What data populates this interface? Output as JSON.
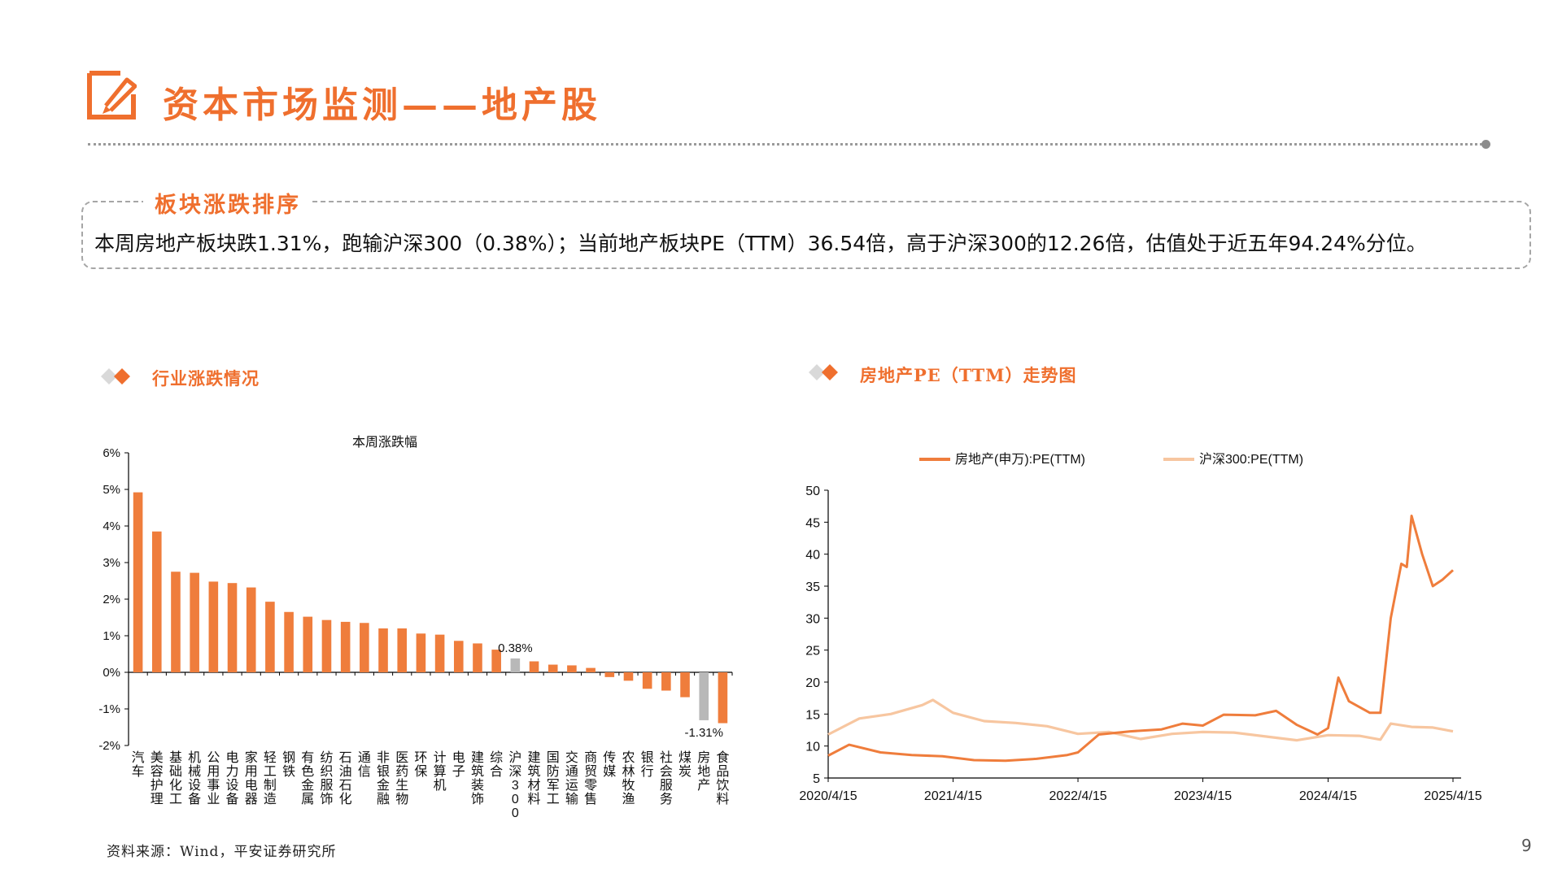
{
  "page": {
    "title": "资本市场监测——地产股",
    "summary_label": "板块涨跌排序",
    "summary_text": "本周房地产板块跌1.31%，跑输沪深300（0.38%）；当前地产板块PE（TTM）36.54倍，高于沪深300的12.26倍，估值处于近五年94.24%分位。",
    "section_left_title": "行业涨跌情况",
    "section_right_title": "房地产PE（TTM）走势图",
    "source_note": "资料来源：Wind，平安证券研究所",
    "page_number": "9"
  },
  "colors": {
    "accent": "#ef6f2e",
    "bar_default": "#ef7d3c",
    "bar_highlight": "#b8b8b8",
    "series_re": "#ef7d3c",
    "series_hs300": "#f7c6a0",
    "axis": "#000000"
  },
  "icons": {
    "title_icon": "pencil-square-icon",
    "section_icon": "double-diamond-icon"
  },
  "chart_data": [
    {
      "type": "bar",
      "title": "本周涨跌幅",
      "ylim": [
        -2,
        6
      ],
      "yticks": [
        6,
        5,
        4,
        3,
        2,
        1,
        0,
        -1,
        -2
      ],
      "ytick_labels": [
        "6%",
        "5%",
        "4%",
        "3%",
        "2%",
        "1%",
        "0%",
        "-1%",
        "-2%"
      ],
      "grid": false,
      "legend": "none",
      "categories": [
        "汽车",
        "美容护理",
        "基础化工",
        "机械设备",
        "公用事业",
        "电力设备",
        "家用电器",
        "轻工制造",
        "钢铁",
        "有色金属",
        "纺织服饰",
        "石油石化",
        "通信",
        "非银金融",
        "医药生物",
        "环保",
        "计算机",
        "电子",
        "建筑装饰",
        "综合",
        "沪深300",
        "建筑材料",
        "国防军工",
        "交通运输",
        "商贸零售",
        "传媒",
        "农林牧渔",
        "银行",
        "社会服务",
        "煤炭",
        "房地产",
        "食品饮料"
      ],
      "values": [
        4.92,
        3.85,
        2.75,
        2.72,
        2.48,
        2.44,
        2.32,
        1.93,
        1.65,
        1.52,
        1.43,
        1.38,
        1.35,
        1.2,
        1.2,
        1.06,
        1.03,
        0.86,
        0.79,
        0.62,
        0.38,
        0.3,
        0.21,
        0.19,
        0.12,
        -0.13,
        -0.23,
        -0.45,
        -0.5,
        -0.68,
        -1.31,
        -1.39
      ],
      "highlight": [
        20,
        30
      ],
      "data_labels": [
        {
          "index": 20,
          "text": "0.38%"
        },
        {
          "index": 30,
          "text": "-1.31%"
        }
      ]
    },
    {
      "type": "line",
      "title": "",
      "xlabel": "",
      "ylabel": "",
      "ylim": [
        5,
        50
      ],
      "yticks": [
        5,
        10,
        15,
        20,
        25,
        30,
        35,
        40,
        45,
        50
      ],
      "x_tick_labels": [
        "2020/4/15",
        "2021/4/15",
        "2022/4/15",
        "2023/4/15",
        "2024/4/15",
        "2025/4/15"
      ],
      "grid": false,
      "legend": "top",
      "series": [
        {
          "name": "房地产(申万):PE(TTM)",
          "x": [
            "2020/4/15",
            "2020/6/15",
            "2020/9/15",
            "2020/12/15",
            "2021/3/15",
            "2021/6/15",
            "2021/9/15",
            "2021/12/15",
            "2022/3/15",
            "2022/4/15",
            "2022/6/15",
            "2022/9/15",
            "2022/12/15",
            "2023/2/15",
            "2023/4/15",
            "2023/6/15",
            "2023/9/15",
            "2023/11/15",
            "2024/1/15",
            "2024/3/15",
            "2024/4/15",
            "2024/5/15",
            "2024/6/15",
            "2024/8/15",
            "2024/9/15",
            "2024/10/15",
            "2024/11/15",
            "2024/12/1",
            "2024/12/15",
            "2025/1/15",
            "2025/2/15",
            "2025/3/15",
            "2025/4/15"
          ],
          "values": [
            8.5,
            10.2,
            9.0,
            8.6,
            8.4,
            7.8,
            7.7,
            8.0,
            8.6,
            9.0,
            11.8,
            12.3,
            12.6,
            13.5,
            13.2,
            14.9,
            14.8,
            15.5,
            13.3,
            11.8,
            12.8,
            20.7,
            17.0,
            15.2,
            15.2,
            30.0,
            38.5,
            38.0,
            46.0,
            40.0,
            35.0,
            36.0,
            37.5
          ]
        },
        {
          "name": "沪深300:PE(TTM)",
          "x": [
            "2020/4/15",
            "2020/7/15",
            "2020/10/15",
            "2021/1/15",
            "2021/2/15",
            "2021/4/15",
            "2021/7/15",
            "2021/10/15",
            "2022/1/15",
            "2022/4/15",
            "2022/7/15",
            "2022/10/15",
            "2023/1/15",
            "2023/4/15",
            "2023/7/15",
            "2023/10/15",
            "2024/1/15",
            "2024/4/15",
            "2024/7/15",
            "2024/9/15",
            "2024/10/15",
            "2024/12/15",
            "2025/2/15",
            "2025/4/15"
          ],
          "values": [
            11.8,
            14.3,
            15.0,
            16.4,
            17.2,
            15.2,
            13.9,
            13.6,
            13.1,
            11.9,
            12.2,
            11.1,
            11.9,
            12.2,
            12.1,
            11.5,
            10.9,
            11.7,
            11.6,
            11.0,
            13.5,
            13.0,
            12.9,
            12.3
          ]
        }
      ]
    }
  ]
}
